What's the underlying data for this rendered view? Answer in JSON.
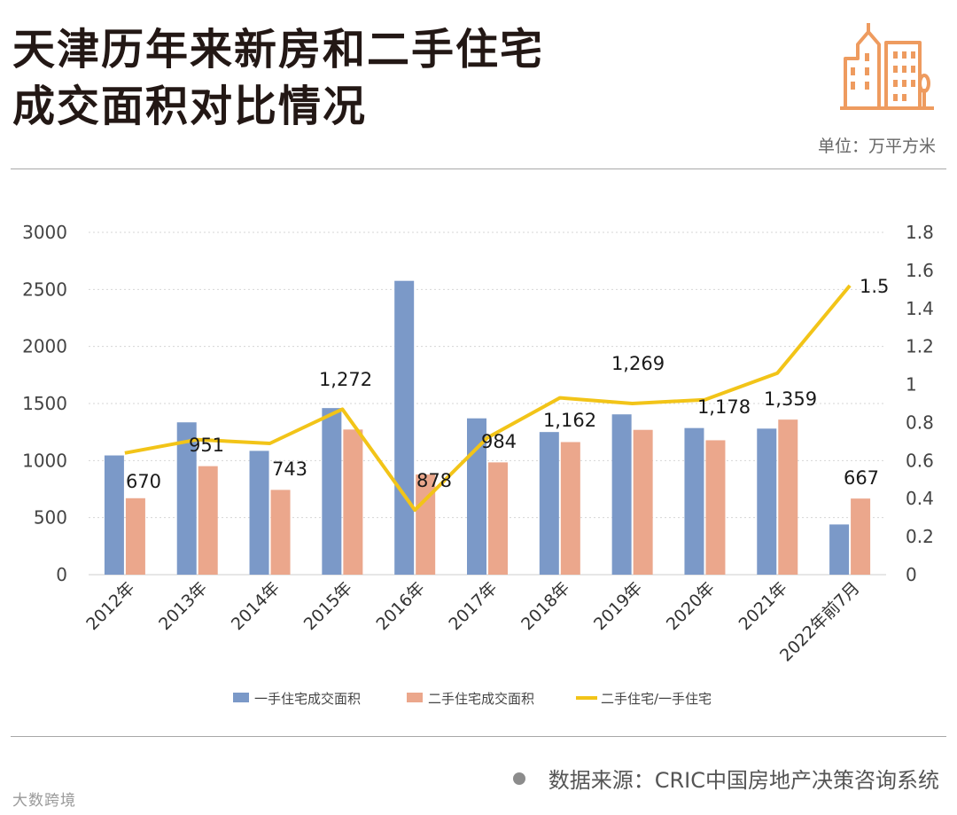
{
  "header": {
    "title_line1": "天津历年来新房和二手住宅",
    "title_line2": "成交面积对比情况",
    "unit": "单位：万平方米"
  },
  "footer": {
    "source": "数据来源：CRIC中国房地产决策咨询系统",
    "logo": "大数跨境"
  },
  "colors": {
    "new_home": "#7b99c8",
    "second_hand": "#eba78c",
    "ratio": "#f2c418",
    "icon": "#ee9b5f"
  },
  "chart_data": {
    "type": "bar",
    "title": "天津历年来新房和二手住宅成交面积对比情况",
    "categories": [
      "2012年",
      "2013年",
      "2014年",
      "2015年",
      "2016年",
      "2017年",
      "2018年",
      "2019年",
      "2020年",
      "2021年",
      "2022年前7月"
    ],
    "series": [
      {
        "name": "一手住宅成交面积",
        "type": "bar",
        "axis": "left",
        "values": [
          1045,
          1335,
          1085,
          1460,
          2575,
          1370,
          1250,
          1405,
          1285,
          1280,
          440
        ]
      },
      {
        "name": "二手住宅成交面积",
        "type": "bar",
        "axis": "left",
        "values": [
          670,
          951,
          743,
          1272,
          878,
          984,
          1162,
          1269,
          1178,
          1359,
          667
        ]
      },
      {
        "name": "二手住宅/一手住宅",
        "type": "line",
        "axis": "right",
        "values": [
          0.64,
          0.71,
          0.69,
          0.87,
          0.34,
          0.72,
          0.93,
          0.9,
          0.92,
          1.06,
          1.52
        ]
      }
    ],
    "data_labels": [
      "670",
      "951",
      "743",
      "1,272",
      "878",
      "984",
      "1,162",
      "1,269",
      "1,178",
      "1,359",
      "667"
    ],
    "ratio_end_label": "1.5",
    "y_left": {
      "min": 0,
      "max": 3000,
      "ticks": [
        "0",
        "500",
        "1000",
        "1500",
        "2000",
        "2500",
        "3000"
      ]
    },
    "y_right": {
      "min": 0,
      "max": 1.8,
      "ticks": [
        "0",
        "0.2",
        "0.4",
        "0.6",
        "0.8",
        "1",
        "1.2",
        "1.4",
        "1.6",
        "1.8"
      ]
    },
    "grid": true,
    "legend_position": "bottom"
  }
}
